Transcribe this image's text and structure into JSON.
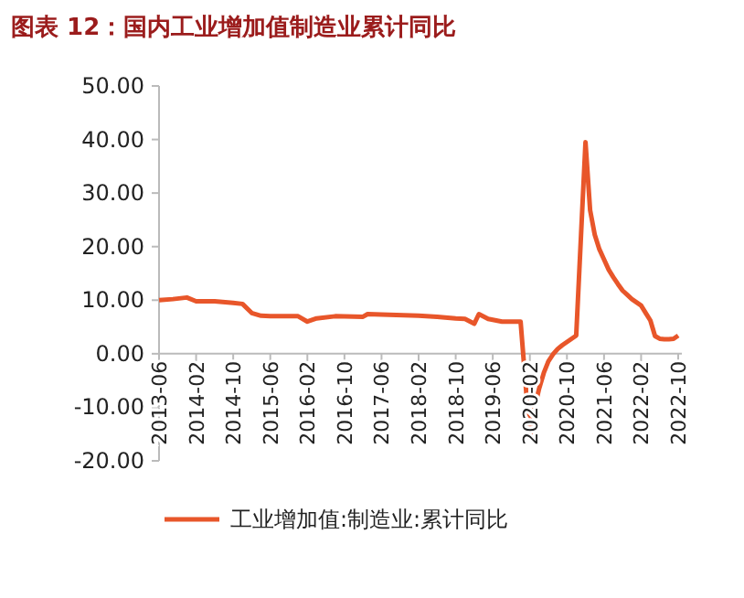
{
  "chart_data": {
    "type": "line",
    "title": "图表 12：国内工业增加值制造业累计同比",
    "x": [
      "2013-06",
      "2013-09",
      "2013-12",
      "2014-02",
      "2014-06",
      "2014-10",
      "2014-12",
      "2015-02",
      "2015-04",
      "2015-06",
      "2015-12",
      "2016-02",
      "2016-04",
      "2016-08",
      "2017-02",
      "2017-03",
      "2017-06",
      "2018-02",
      "2018-06",
      "2018-10",
      "2018-12",
      "2019-02",
      "2019-03",
      "2019-05",
      "2019-08",
      "2019-12",
      "2020-02",
      "2020-03",
      "2020-04",
      "2020-05",
      "2020-06",
      "2020-07",
      "2020-08",
      "2020-09",
      "2020-10",
      "2020-11",
      "2020-12",
      "2021-02",
      "2021-03",
      "2021-04",
      "2021-05",
      "2021-06",
      "2021-07",
      "2021-08",
      "2021-09",
      "2021-10",
      "2021-11",
      "2021-12",
      "2022-02",
      "2022-03",
      "2022-04",
      "2022-05",
      "2022-06",
      "2022-07",
      "2022-08",
      "2022-09",
      "2022-10"
    ],
    "series": [
      {
        "name": "工业增加值:制造业:累计同比",
        "color": "#e8562a",
        "values": [
          10.0,
          10.2,
          10.5,
          9.8,
          9.8,
          9.5,
          9.3,
          7.6,
          7.1,
          7.0,
          7.0,
          6.0,
          6.6,
          7.0,
          6.9,
          7.4,
          7.3,
          7.1,
          6.9,
          6.6,
          6.5,
          5.6,
          7.4,
          6.5,
          6.0,
          6.0,
          -15.7,
          -10.2,
          -6.5,
          -3.6,
          -1.4,
          -0.1,
          0.9,
          1.6,
          2.2,
          2.8,
          3.4,
          39.5,
          26.8,
          22.2,
          19.5,
          17.6,
          15.7,
          14.3,
          13.0,
          11.8,
          11.0,
          10.2,
          9.0,
          7.6,
          6.2,
          3.3,
          2.8,
          2.7,
          2.7,
          2.8,
          3.4
        ]
      }
    ],
    "xlim": [
      "2013-06",
      "2022-10"
    ],
    "xticks": [
      "2013-06",
      "2014-02",
      "2014-10",
      "2015-06",
      "2016-02",
      "2016-10",
      "2017-06",
      "2018-02",
      "2018-10",
      "2019-06",
      "2020-02",
      "2020-10",
      "2021-06",
      "2022-02",
      "2022-10"
    ],
    "ylim": [
      -20,
      50
    ],
    "yticks": [
      {
        "value": -20,
        "label": "-20.00"
      },
      {
        "value": -10,
        "label": "-10.00"
      },
      {
        "value": 0,
        "label": "0.00"
      },
      {
        "value": 10,
        "label": "10.00"
      },
      {
        "value": 20,
        "label": "20.00"
      },
      {
        "value": 30,
        "label": "30.00"
      },
      {
        "value": 40,
        "label": "40.00"
      },
      {
        "value": 50,
        "label": "50.00"
      }
    ],
    "legend": "bottom"
  }
}
